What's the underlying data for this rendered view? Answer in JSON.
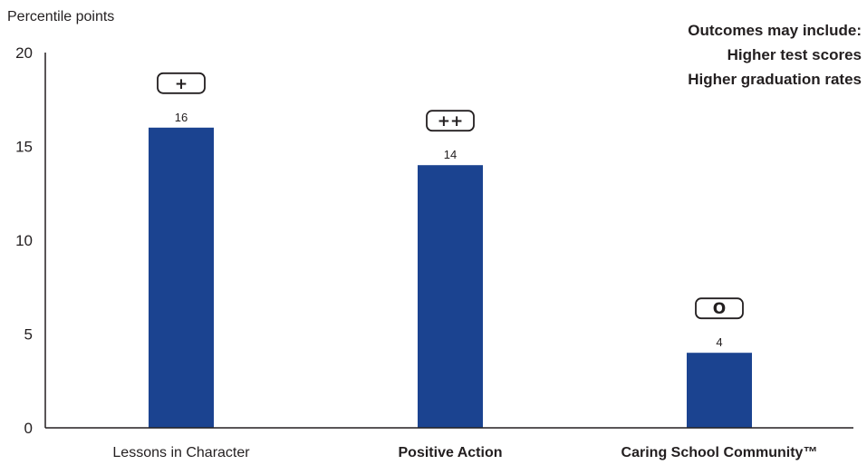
{
  "chart_data": {
    "type": "bar",
    "title": "",
    "ylabel": "Percentile points",
    "xlabel": "",
    "ylim": [
      0,
      20
    ],
    "yticks": [
      0,
      5,
      10,
      15,
      20
    ],
    "grid": false,
    "categories": [
      "Lessons in Character",
      "Positive Action",
      "Caring School Community™"
    ],
    "category_bold": [
      false,
      true,
      true
    ],
    "values": [
      16,
      14,
      4
    ],
    "value_labels": [
      "16",
      "14",
      "4"
    ],
    "badges": [
      "+",
      "++",
      "O"
    ],
    "bar_color": "#1b4390",
    "annotations": {
      "header": "Outcomes may include:",
      "lines": [
        "Higher test scores",
        "Higher graduation rates"
      ]
    }
  }
}
